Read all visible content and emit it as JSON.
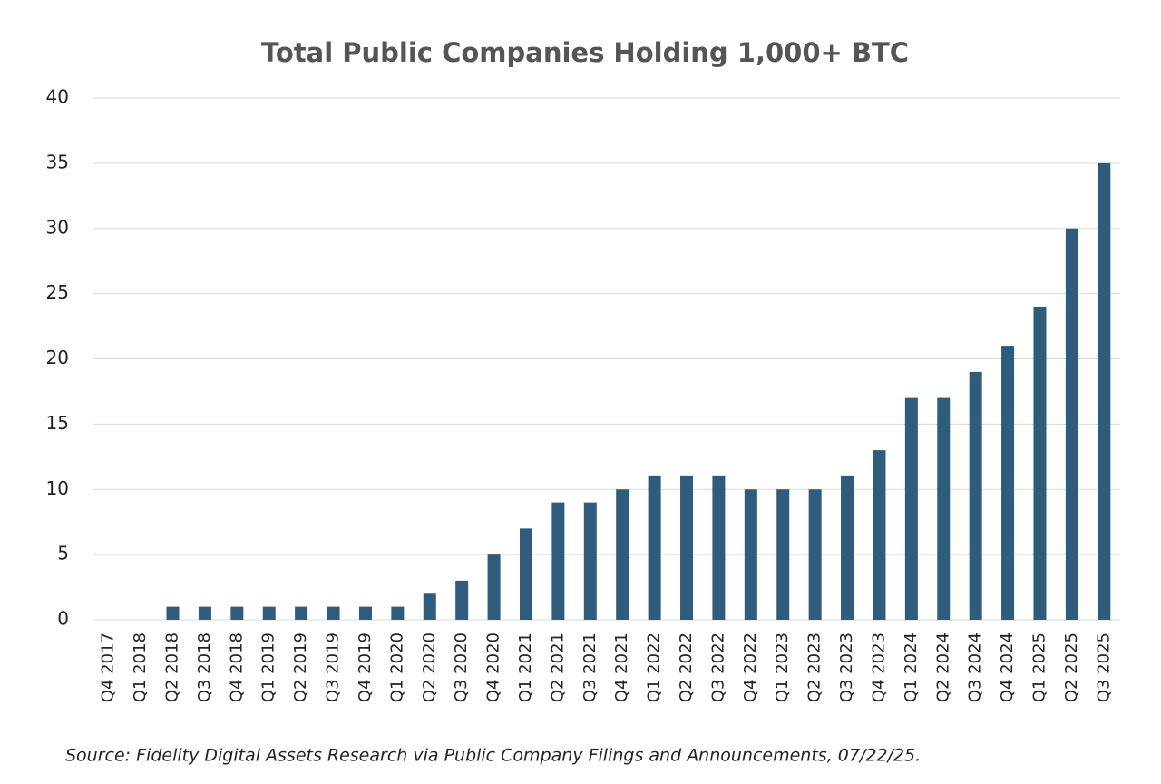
{
  "chart_data": {
    "type": "bar",
    "title": "Total Public Companies Holding 1,000+ BTC",
    "categories": [
      "Q4 2017",
      "Q1 2018",
      "Q2 2018",
      "Q3 2018",
      "Q4 2018",
      "Q1 2019",
      "Q2 2019",
      "Q3 2019",
      "Q4 2019",
      "Q1 2020",
      "Q2 2020",
      "Q3 2020",
      "Q4 2020",
      "Q1 2021",
      "Q2 2021",
      "Q3 2021",
      "Q4 2021",
      "Q1 2022",
      "Q2 2022",
      "Q3 2022",
      "Q4 2022",
      "Q1 2023",
      "Q2 2023",
      "Q3 2023",
      "Q4 2023",
      "Q1 2024",
      "Q2 2024",
      "Q3 2024",
      "Q4 2024",
      "Q1 2025",
      "Q2 2025",
      "Q3 2025"
    ],
    "values": [
      0,
      0,
      1,
      1,
      1,
      1,
      1,
      1,
      1,
      1,
      2,
      3,
      5,
      7,
      9,
      9,
      10,
      11,
      11,
      11,
      10,
      10,
      10,
      11,
      13,
      17,
      17,
      19,
      21,
      24,
      30,
      35
    ],
    "color": "#2f5b7c",
    "ylim": [
      0,
      40
    ],
    "yticks": [
      0,
      5,
      10,
      15,
      20,
      25,
      30,
      35,
      40
    ],
    "grid": true,
    "source": "Source: Fidelity Digital Assets Research via Public Company Filings and Announcements, 07/22/25."
  }
}
